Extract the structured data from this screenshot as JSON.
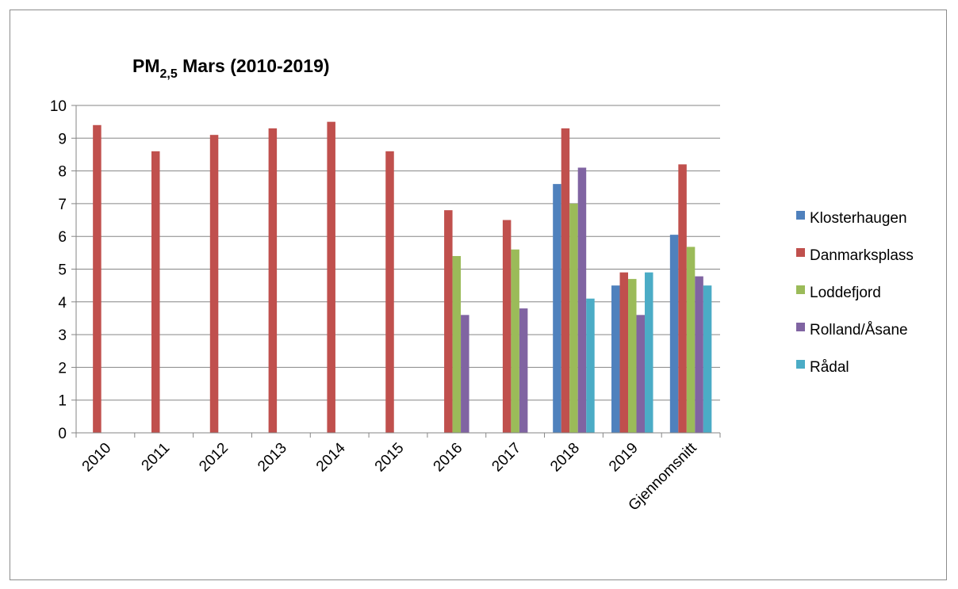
{
  "chart_data": {
    "type": "bar",
    "title": {
      "prefix": "PM",
      "subscript": "2,5",
      "suffix": " Mars (2010-2019)"
    },
    "categories": [
      "2010",
      "2011",
      "2012",
      "2013",
      "2014",
      "2015",
      "2016",
      "2017",
      "2018",
      "2019",
      "Gjennomsnitt"
    ],
    "series": [
      {
        "name": "Klosterhaugen",
        "color": "#4F81BD",
        "values": [
          null,
          null,
          null,
          null,
          null,
          null,
          null,
          null,
          7.6,
          4.5,
          6.05
        ]
      },
      {
        "name": "Danmarksplass",
        "color": "#C0504D",
        "values": [
          9.4,
          8.6,
          9.1,
          9.3,
          9.5,
          8.6,
          6.8,
          6.5,
          9.3,
          4.9,
          8.2
        ]
      },
      {
        "name": "Loddefjord",
        "color": "#9BBB59",
        "values": [
          null,
          null,
          null,
          null,
          null,
          null,
          5.4,
          5.6,
          7.0,
          4.7,
          5.68
        ]
      },
      {
        "name": "Rolland/Åsane",
        "color": "#8064A2",
        "values": [
          null,
          null,
          null,
          null,
          null,
          null,
          3.6,
          3.8,
          8.1,
          3.6,
          4.78
        ]
      },
      {
        "name": "Rådal",
        "color": "#4BACC6",
        "values": [
          null,
          null,
          null,
          null,
          null,
          null,
          null,
          null,
          4.1,
          4.9,
          4.5
        ]
      }
    ],
    "ylim": [
      0,
      10
    ],
    "yticks": [
      0,
      1,
      2,
      3,
      4,
      5,
      6,
      7,
      8,
      9,
      10
    ],
    "grid": true,
    "legend_position": "right",
    "xlabel": "",
    "ylabel": ""
  }
}
